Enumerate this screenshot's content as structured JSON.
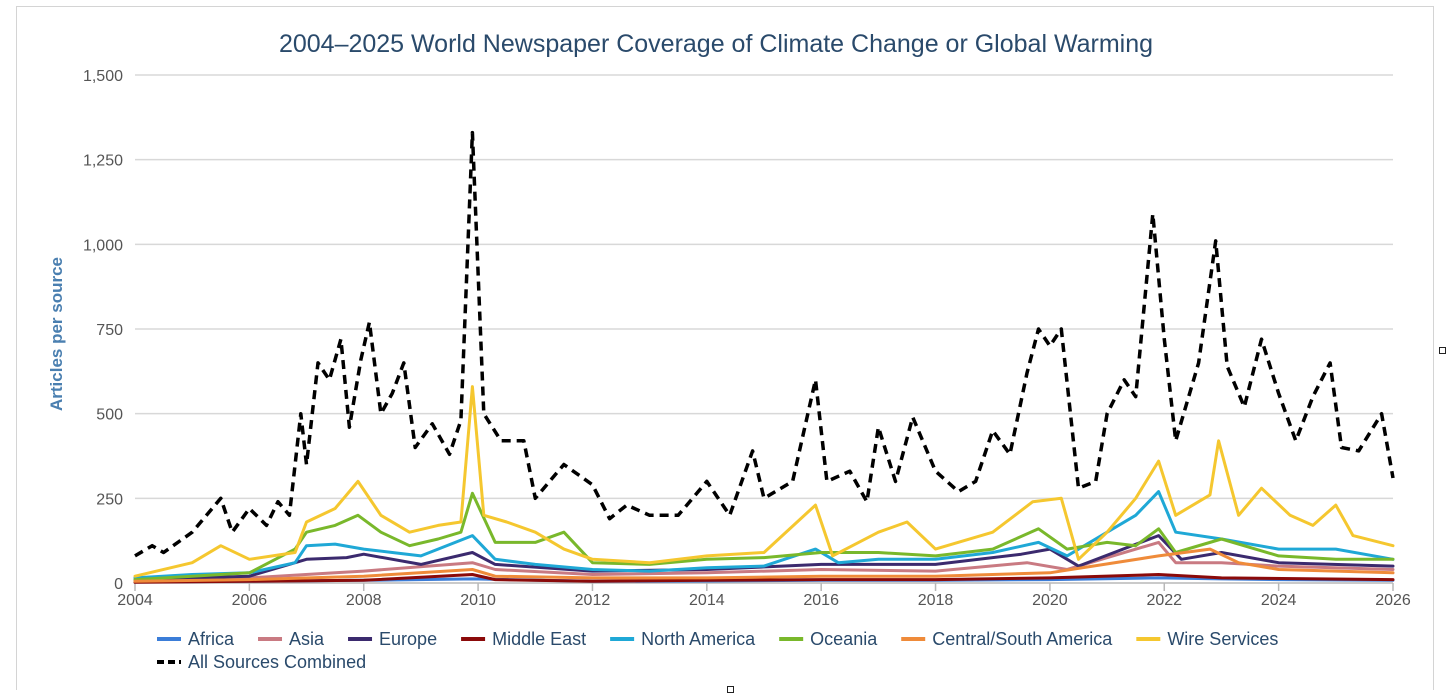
{
  "chart_data": {
    "type": "line",
    "title": "2004–2025 World Newspaper Coverage of Climate Change or Global Warming",
    "ylabel": "Articles per source",
    "xlabel": "",
    "xlim": [
      2004,
      2026
    ],
    "ylim": [
      0,
      1500
    ],
    "xticks": [
      2004,
      2006,
      2008,
      2010,
      2012,
      2014,
      2016,
      2018,
      2020,
      2022,
      2024,
      2026
    ],
    "yticks": [
      0,
      250,
      500,
      750,
      1000,
      1250,
      1500
    ],
    "xtick_labels": [
      "2004",
      "2006",
      "2008",
      "2010",
      "2012",
      "2014",
      "2016",
      "2018",
      "2020",
      "2022",
      "2024",
      "2026"
    ],
    "ytick_labels": [
      "0",
      "250",
      "500",
      "750",
      "1,000",
      "1,250",
      "1,500"
    ],
    "grid": true,
    "legend_position": "bottom",
    "series": [
      {
        "name": "Africa",
        "color": "#3b7dd8",
        "dashed": false,
        "points": [
          [
            2004,
            3
          ],
          [
            2006,
            5
          ],
          [
            2008,
            8
          ],
          [
            2009.9,
            12
          ],
          [
            2012,
            5
          ],
          [
            2014,
            6
          ],
          [
            2016,
            8
          ],
          [
            2018,
            8
          ],
          [
            2020,
            10
          ],
          [
            2021.9,
            15
          ],
          [
            2023,
            12
          ],
          [
            2024,
            10
          ],
          [
            2026,
            8
          ]
        ]
      },
      {
        "name": "Asia",
        "color": "#c97a82",
        "dashed": false,
        "points": [
          [
            2004,
            8
          ],
          [
            2006,
            15
          ],
          [
            2007.5,
            30
          ],
          [
            2008,
            35
          ],
          [
            2009.9,
            60
          ],
          [
            2010.3,
            40
          ],
          [
            2012,
            25
          ],
          [
            2014,
            30
          ],
          [
            2016,
            40
          ],
          [
            2018,
            35
          ],
          [
            2019.6,
            60
          ],
          [
            2020.3,
            40
          ],
          [
            2021.9,
            120
          ],
          [
            2022.2,
            60
          ],
          [
            2023,
            60
          ],
          [
            2024,
            50
          ],
          [
            2026,
            40
          ]
        ]
      },
      {
        "name": "Europe",
        "color": "#3b2a6e",
        "dashed": false,
        "points": [
          [
            2004,
            10
          ],
          [
            2006,
            20
          ],
          [
            2007,
            70
          ],
          [
            2007.7,
            75
          ],
          [
            2008,
            85
          ],
          [
            2009,
            55
          ],
          [
            2009.9,
            90
          ],
          [
            2010.3,
            55
          ],
          [
            2012,
            35
          ],
          [
            2014,
            40
          ],
          [
            2016,
            55
          ],
          [
            2018,
            55
          ],
          [
            2019.5,
            85
          ],
          [
            2020,
            100
          ],
          [
            2020.5,
            50
          ],
          [
            2021.9,
            140
          ],
          [
            2022.3,
            70
          ],
          [
            2023,
            90
          ],
          [
            2024,
            60
          ],
          [
            2026,
            50
          ]
        ]
      },
      {
        "name": "Middle East",
        "color": "#8b0a0a",
        "dashed": false,
        "points": [
          [
            2004,
            2
          ],
          [
            2006,
            5
          ],
          [
            2008,
            8
          ],
          [
            2009.9,
            25
          ],
          [
            2010.3,
            10
          ],
          [
            2012,
            5
          ],
          [
            2014,
            8
          ],
          [
            2016,
            10
          ],
          [
            2018,
            10
          ],
          [
            2020,
            15
          ],
          [
            2021.9,
            25
          ],
          [
            2023,
            15
          ],
          [
            2026,
            10
          ]
        ]
      },
      {
        "name": "North America",
        "color": "#1fa8d6",
        "dashed": false,
        "points": [
          [
            2004,
            15
          ],
          [
            2005,
            25
          ],
          [
            2006,
            30
          ],
          [
            2006.8,
            60
          ],
          [
            2007,
            110
          ],
          [
            2007.5,
            115
          ],
          [
            2008,
            100
          ],
          [
            2008.5,
            90
          ],
          [
            2009,
            80
          ],
          [
            2009.9,
            140
          ],
          [
            2010.3,
            70
          ],
          [
            2011,
            55
          ],
          [
            2012,
            40
          ],
          [
            2013,
            35
          ],
          [
            2014,
            45
          ],
          [
            2015,
            50
          ],
          [
            2015.9,
            100
          ],
          [
            2016.3,
            60
          ],
          [
            2017,
            70
          ],
          [
            2018,
            70
          ],
          [
            2019,
            90
          ],
          [
            2019.8,
            120
          ],
          [
            2020.3,
            80
          ],
          [
            2021,
            150
          ],
          [
            2021.5,
            200
          ],
          [
            2021.9,
            270
          ],
          [
            2022.2,
            150
          ],
          [
            2023,
            130
          ],
          [
            2024,
            100
          ],
          [
            2025,
            100
          ],
          [
            2026,
            70
          ]
        ]
      },
      {
        "name": "Oceania",
        "color": "#79b82b",
        "dashed": false,
        "points": [
          [
            2004,
            10
          ],
          [
            2005,
            20
          ],
          [
            2006,
            30
          ],
          [
            2006.8,
            100
          ],
          [
            2007,
            150
          ],
          [
            2007.5,
            170
          ],
          [
            2007.9,
            200
          ],
          [
            2008.3,
            150
          ],
          [
            2008.8,
            110
          ],
          [
            2009.3,
            130
          ],
          [
            2009.7,
            150
          ],
          [
            2009.9,
            265
          ],
          [
            2010.3,
            120
          ],
          [
            2011,
            120
          ],
          [
            2011.5,
            150
          ],
          [
            2012,
            60
          ],
          [
            2013,
            55
          ],
          [
            2014,
            70
          ],
          [
            2015,
            75
          ],
          [
            2016,
            90
          ],
          [
            2017,
            90
          ],
          [
            2018,
            80
          ],
          [
            2019,
            100
          ],
          [
            2019.8,
            160
          ],
          [
            2020.3,
            100
          ],
          [
            2021,
            120
          ],
          [
            2021.5,
            110
          ],
          [
            2021.9,
            160
          ],
          [
            2022.2,
            90
          ],
          [
            2023,
            130
          ],
          [
            2024,
            80
          ],
          [
            2025,
            70
          ],
          [
            2026,
            70
          ]
        ]
      },
      {
        "name": "Central/South America",
        "color": "#ef8b3a",
        "dashed": false,
        "points": [
          [
            2004,
            5
          ],
          [
            2006,
            10
          ],
          [
            2008,
            20
          ],
          [
            2009.9,
            40
          ],
          [
            2010.3,
            20
          ],
          [
            2012,
            15
          ],
          [
            2014,
            15
          ],
          [
            2016,
            20
          ],
          [
            2018,
            20
          ],
          [
            2020,
            30
          ],
          [
            2021.9,
            80
          ],
          [
            2022.8,
            100
          ],
          [
            2023.3,
            60
          ],
          [
            2024,
            40
          ],
          [
            2026,
            30
          ]
        ]
      },
      {
        "name": "Wire Services",
        "color": "#f5c72f",
        "dashed": false,
        "points": [
          [
            2004,
            20
          ],
          [
            2005,
            60
          ],
          [
            2005.5,
            110
          ],
          [
            2006,
            70
          ],
          [
            2006.8,
            90
          ],
          [
            2007,
            180
          ],
          [
            2007.5,
            220
          ],
          [
            2007.9,
            300
          ],
          [
            2008.3,
            200
          ],
          [
            2008.8,
            150
          ],
          [
            2009.3,
            170
          ],
          [
            2009.7,
            180
          ],
          [
            2009.9,
            580
          ],
          [
            2010.1,
            200
          ],
          [
            2010.5,
            180
          ],
          [
            2011,
            150
          ],
          [
            2011.5,
            100
          ],
          [
            2012,
            70
          ],
          [
            2013,
            60
          ],
          [
            2014,
            80
          ],
          [
            2015,
            90
          ],
          [
            2015.9,
            230
          ],
          [
            2016.2,
            80
          ],
          [
            2017,
            150
          ],
          [
            2017.5,
            180
          ],
          [
            2018,
            100
          ],
          [
            2019,
            150
          ],
          [
            2019.7,
            240
          ],
          [
            2020.2,
            250
          ],
          [
            2020.5,
            70
          ],
          [
            2021,
            150
          ],
          [
            2021.5,
            250
          ],
          [
            2021.9,
            360
          ],
          [
            2022.2,
            200
          ],
          [
            2022.8,
            260
          ],
          [
            2022.95,
            420
          ],
          [
            2023.3,
            200
          ],
          [
            2023.7,
            280
          ],
          [
            2024.2,
            200
          ],
          [
            2024.6,
            170
          ],
          [
            2025,
            230
          ],
          [
            2025.3,
            140
          ],
          [
            2026,
            110
          ]
        ]
      },
      {
        "name": "All Sources Combined",
        "color": "#000000",
        "dashed": true,
        "points": [
          [
            2004,
            80
          ],
          [
            2004.3,
            110
          ],
          [
            2004.5,
            90
          ],
          [
            2005,
            150
          ],
          [
            2005.5,
            250
          ],
          [
            2005.7,
            150
          ],
          [
            2006,
            220
          ],
          [
            2006.3,
            170
          ],
          [
            2006.5,
            240
          ],
          [
            2006.7,
            200
          ],
          [
            2006.9,
            500
          ],
          [
            2007,
            350
          ],
          [
            2007.2,
            650
          ],
          [
            2007.4,
            600
          ],
          [
            2007.6,
            720
          ],
          [
            2007.75,
            460
          ],
          [
            2007.95,
            660
          ],
          [
            2008.1,
            770
          ],
          [
            2008.3,
            500
          ],
          [
            2008.5,
            560
          ],
          [
            2008.7,
            650
          ],
          [
            2008.9,
            400
          ],
          [
            2009.2,
            470
          ],
          [
            2009.5,
            380
          ],
          [
            2009.7,
            480
          ],
          [
            2009.9,
            1330
          ],
          [
            2010.1,
            500
          ],
          [
            2010.4,
            420
          ],
          [
            2010.8,
            420
          ],
          [
            2011,
            250
          ],
          [
            2011.5,
            350
          ],
          [
            2012,
            290
          ],
          [
            2012.3,
            190
          ],
          [
            2012.6,
            230
          ],
          [
            2013,
            200
          ],
          [
            2013.5,
            200
          ],
          [
            2014,
            300
          ],
          [
            2014.4,
            200
          ],
          [
            2014.8,
            390
          ],
          [
            2015,
            250
          ],
          [
            2015.5,
            300
          ],
          [
            2015.9,
            600
          ],
          [
            2016.1,
            300
          ],
          [
            2016.5,
            330
          ],
          [
            2016.8,
            240
          ],
          [
            2017,
            460
          ],
          [
            2017.3,
            300
          ],
          [
            2017.6,
            490
          ],
          [
            2018,
            330
          ],
          [
            2018.4,
            270
          ],
          [
            2018.7,
            300
          ],
          [
            2019,
            450
          ],
          [
            2019.3,
            380
          ],
          [
            2019.6,
            620
          ],
          [
            2019.8,
            750
          ],
          [
            2020,
            700
          ],
          [
            2020.2,
            750
          ],
          [
            2020.5,
            280
          ],
          [
            2020.8,
            300
          ],
          [
            2021,
            500
          ],
          [
            2021.3,
            600
          ],
          [
            2021.5,
            550
          ],
          [
            2021.8,
            1090
          ],
          [
            2022,
            720
          ],
          [
            2022.2,
            420
          ],
          [
            2022.6,
            650
          ],
          [
            2022.9,
            1010
          ],
          [
            2023.1,
            640
          ],
          [
            2023.4,
            520
          ],
          [
            2023.7,
            720
          ],
          [
            2024,
            560
          ],
          [
            2024.3,
            420
          ],
          [
            2024.6,
            550
          ],
          [
            2024.9,
            650
          ],
          [
            2025.1,
            400
          ],
          [
            2025.4,
            390
          ],
          [
            2025.8,
            500
          ],
          [
            2026,
            310
          ]
        ]
      }
    ]
  }
}
